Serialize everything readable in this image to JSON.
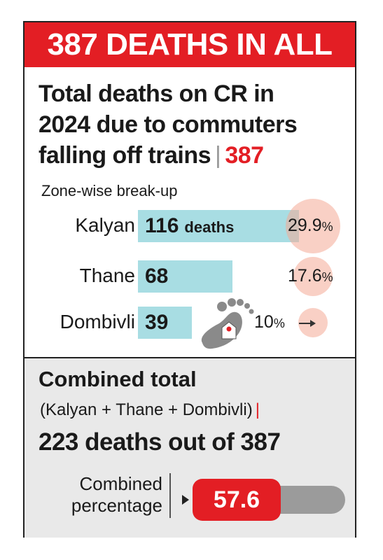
{
  "banner": "387 DEATHS IN ALL",
  "headline": {
    "line1": "Total deaths on CR in",
    "line2": "2024 due to commuters",
    "line3": "falling off trains",
    "divider": "|",
    "total": "387"
  },
  "subhead": "Zone-wise break-up",
  "zones": [
    {
      "label": "Kalyan",
      "value": "116",
      "unit": "deaths",
      "pct": "29.9",
      "pct_sym": "%"
    },
    {
      "label": "Thane",
      "value": "68",
      "unit": "",
      "pct": "17.6",
      "pct_sym": "%"
    },
    {
      "label": "Dombivli",
      "value": "39",
      "unit": "",
      "pct": "10",
      "pct_sym": "%"
    }
  ],
  "icon": "footprint-icon",
  "combined": {
    "title": "Combined total",
    "subtitle": "(Kalyan + Thane + Dombivli)",
    "subtitle_bar": "|",
    "main": "223 deaths out of 387",
    "label_line1": "Combined",
    "label_line2": "percentage",
    "value": "57.6",
    "percent": 57.6
  },
  "colors": {
    "accent": "#e31e24",
    "bar": "#a8dde3",
    "bubble": "#f4aa96",
    "panel": "#e9e9e9",
    "track": "#9b9b9b"
  },
  "chart_data": {
    "type": "bar",
    "categories": [
      "Kalyan",
      "Thane",
      "Dombivli"
    ],
    "values": [
      116,
      68,
      39
    ],
    "percentages": [
      29.9,
      17.6,
      10
    ],
    "total": 387,
    "combined_total": 223,
    "combined_percentage": 57.6
  }
}
